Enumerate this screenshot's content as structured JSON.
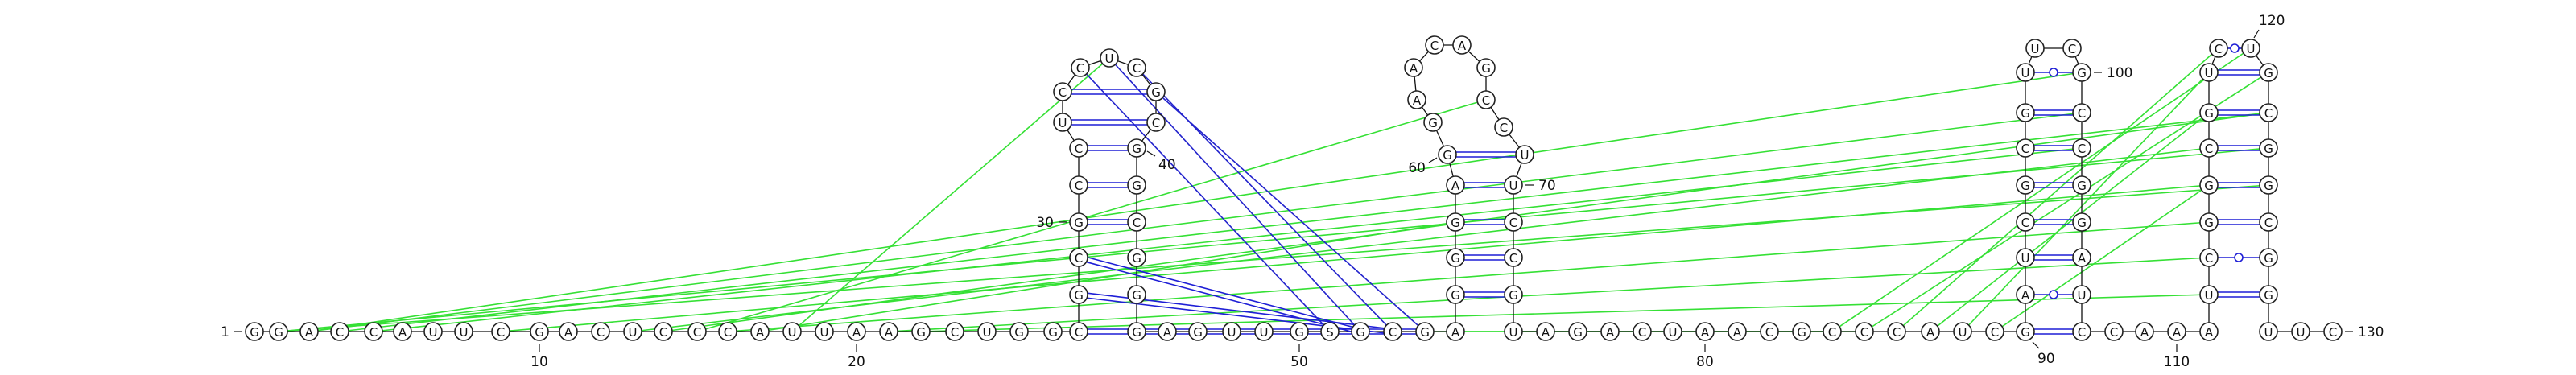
{
  "diagram": {
    "type": "rna-secondary-structure",
    "sequence_by_position": {
      "1": "G",
      "2": "G",
      "3": "A",
      "4": "C",
      "5": "C",
      "6": "A",
      "7": "U",
      "8": "U",
      "9": "C",
      "10": "G",
      "11": "A",
      "12": "C",
      "13": "U",
      "14": "C",
      "15": "C",
      "16": "C",
      "17": "A",
      "18": "U",
      "19": "U",
      "20": "A",
      "21": "A",
      "22": "G",
      "23": "C",
      "24": "U",
      "25": "G",
      "26": "G",
      "27": "C",
      "28": "G",
      "29": "C",
      "30": "G",
      "31": "C",
      "32": "C",
      "33": "U",
      "34": "C",
      "35": "C",
      "36": "U",
      "37": "C",
      "38": "G",
      "39": "C",
      "40": "G",
      "41": "G",
      "42": "C",
      "43": "G",
      "44": "G",
      "45": "G",
      "46": "A",
      "47": "G",
      "48": "U",
      "49": "U",
      "50": "G",
      "51": "S",
      "52": "G",
      "53": "C",
      "54": "G",
      "55": "A",
      "56": "G",
      "57": "G",
      "58": "G",
      "59": "A",
      "60": "G",
      "61": "G",
      "62": "A",
      "63": "A",
      "64": "C",
      "65": "A",
      "66": "G",
      "67": "C",
      "68": "C",
      "69": "U",
      "70": "U",
      "71": "C",
      "72": "C",
      "73": "G",
      "74": "U",
      "75": "A",
      "76": "G",
      "77": "A",
      "78": "C",
      "79": "U",
      "80": "A",
      "81": "A",
      "82": "C",
      "83": "G",
      "84": "C",
      "85": "C",
      "86": "C",
      "87": "A",
      "88": "U",
      "89": "C",
      "90": "G",
      "91": "A",
      "92": "U",
      "93": "C",
      "94": "G",
      "95": "C",
      "96": "G",
      "97": "U",
      "98": "U",
      "99": "C",
      "100": "G",
      "101": "C",
      "102": "C",
      "103": "G",
      "104": "G",
      "105": "A",
      "106": "U",
      "107": "C",
      "108": "C",
      "109": "A",
      "110": "A",
      "111": "A",
      "112": "U",
      "113": "C",
      "114": "G",
      "115": "G",
      "116": "C",
      "117": "G",
      "118": "U",
      "119": "C",
      "120": "U",
      "121": "G",
      "122": "C",
      "123": "G",
      "124": "G",
      "125": "C",
      "126": "G",
      "127": "G",
      "128": "U",
      "129": "U",
      "130": "C"
    },
    "index_labels": [
      "1",
      "10",
      "20",
      "30",
      "40",
      "50",
      "60",
      "70",
      "80",
      "90",
      "100",
      "110",
      "120",
      "130"
    ],
    "watson_crick_pairs": [
      [
        27,
        54
      ],
      [
        28,
        53
      ],
      [
        29,
        52
      ],
      [
        30,
        42
      ],
      [
        31,
        41
      ],
      [
        32,
        40
      ],
      [
        33,
        39
      ],
      [
        34,
        38
      ],
      [
        56,
        73
      ],
      [
        57,
        72
      ],
      [
        58,
        71
      ],
      [
        59,
        70
      ],
      [
        60,
        69
      ],
      [
        90,
        107
      ],
      [
        92,
        105
      ],
      [
        93,
        104
      ],
      [
        94,
        103
      ],
      [
        95,
        102
      ],
      [
        96,
        101
      ],
      [
        112,
        127
      ],
      [
        114,
        125
      ],
      [
        115,
        124
      ],
      [
        116,
        123
      ],
      [
        117,
        122
      ],
      [
        118,
        121
      ]
    ],
    "wobble_pairs": [
      [
        91,
        106
      ],
      [
        97,
        100
      ],
      [
        113,
        126
      ],
      [
        119,
        120
      ]
    ],
    "tertiary_pairs": [
      [
        2,
        123
      ],
      [
        2,
        124
      ],
      [
        3,
        100
      ],
      [
        3,
        101
      ],
      [
        4,
        122
      ],
      [
        5,
        102
      ],
      [
        9,
        115
      ],
      [
        13,
        116
      ],
      [
        14,
        122
      ],
      [
        15,
        67
      ],
      [
        16,
        114
      ],
      [
        17,
        58
      ],
      [
        18,
        36
      ],
      [
        21,
        113
      ],
      [
        22,
        112
      ],
      [
        54,
        84
      ],
      [
        55,
        85
      ],
      [
        84,
        120
      ],
      [
        85,
        121
      ],
      [
        86,
        119
      ],
      [
        87,
        117
      ],
      [
        88,
        118
      ],
      [
        89,
        115
      ]
    ],
    "crossing_pairs": [
      [
        35,
        51
      ],
      [
        36,
        52
      ],
      [
        37,
        53
      ],
      [
        38,
        54
      ]
    ],
    "colors": {
      "base_pair": "#1f1fd6",
      "tertiary_interaction": "#35e035",
      "backbone": "#111111"
    }
  }
}
